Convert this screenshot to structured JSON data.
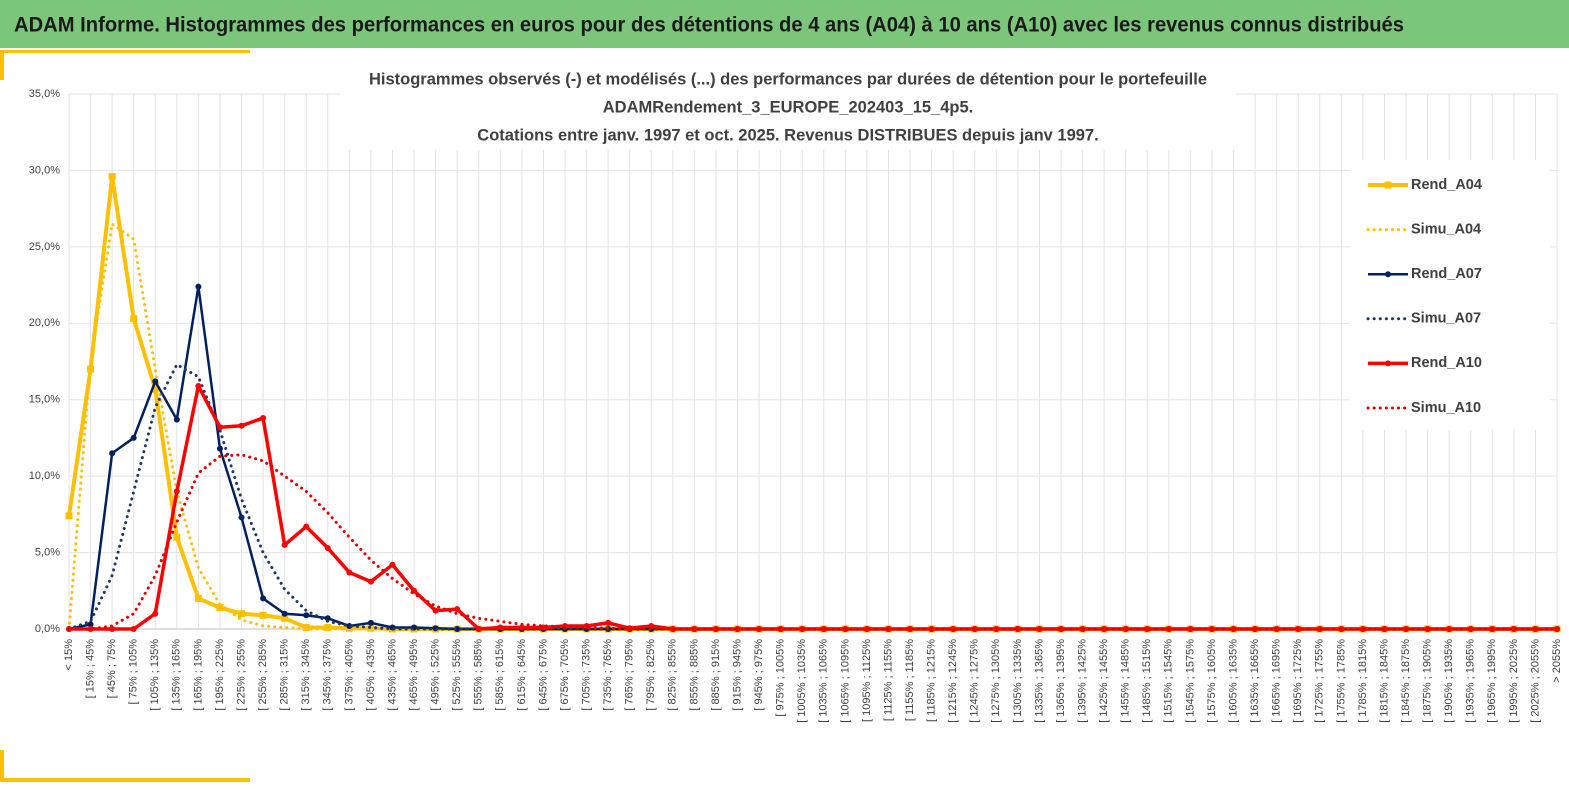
{
  "header": {
    "title": "ADAM Informe. Histogrammes des performances en euros pour des détentions de 4 ans (A04) à 10 ans (A10) avec les revenus connus distribués"
  },
  "chart_data": {
    "type": "line",
    "title": [
      "Histogrammes observés (-) et modélisés (...) des performances par durées de détention pour le portefeuille",
      "ADAMRendement_3_EUROPE_202403_15_4p5.",
      "Cotations entre janv. 1997 et oct. 2025. Revenus DISTRIBUES depuis janv 1997."
    ],
    "categories": [
      "< 15%",
      "[ 15% ; 45%",
      "[ 45% ; 75%",
      "[ 75% ; 105%",
      "[ 105% ; 135%",
      "[ 135% ; 165%",
      "[ 165% ; 195%",
      "[ 195% ; 225%",
      "[ 225% ; 255%",
      "[ 255% ; 285%",
      "[ 285% ; 315%",
      "[ 315% ; 345%",
      "[ 345% ; 375%",
      "[ 375% ; 405%",
      "[ 405% ; 435%",
      "[ 435% ; 465%",
      "[ 465% ; 495%",
      "[ 495% ; 525%",
      "[ 525% ; 555%",
      "[ 555% ; 585%",
      "[ 585% ; 615%",
      "[ 615% ; 645%",
      "[ 645% ; 675%",
      "[ 675% ; 705%",
      "[ 705% ; 735%",
      "[ 735% ; 765%",
      "[ 765% ; 795%",
      "[ 795% ; 825%",
      "[ 825% ; 855%",
      "[ 855% ; 885%",
      "[ 885% ; 915%",
      "[ 915% ; 945%",
      "[ 945% ; 975%",
      "[ 975% ; 1005%",
      "[ 1005% ; 1035%",
      "[ 1035% ; 1065%",
      "[ 1065% ; 1095%",
      "[ 1095% ; 1125%",
      "[ 1125% ; 1155%",
      "[ 1155% ; 1185%",
      "[ 1185% ; 1215%",
      "[ 1215% ; 1245%",
      "[ 1245% ; 1275%",
      "[ 1275% ; 1305%",
      "[ 1305% ; 1335%",
      "[ 1335% ; 1365%",
      "[ 1365% ; 1395%",
      "[ 1395% ; 1425%",
      "[ 1425% ; 1455%",
      "[ 1455% ; 1485%",
      "[ 1485% ; 1515%",
      "[ 1515% ; 1545%",
      "[ 1545% ; 1575%",
      "[ 1575% ; 1605%",
      "[ 1605% ; 1635%",
      "[ 1635% ; 1665%",
      "[ 1665% ; 1695%",
      "[ 1695% ; 1725%",
      "[ 1725% ; 1755%",
      "[ 1755% ; 1785%",
      "[ 1785% ; 1815%",
      "[ 1815% ; 1845%",
      "[ 1845% ; 1875%",
      "[ 1875% ; 1905%",
      "[ 1905% ; 1935%",
      "[ 1935% ; 1965%",
      "[ 1965% ; 1995%",
      "[ 1995% ; 2025%",
      "[ 2025% ; 2055%",
      "> 2055%"
    ],
    "series": [
      {
        "name": "Rend_A04",
        "color": "#ffc000",
        "style": "solid",
        "marker": "square",
        "values": [
          7.4,
          17,
          29.6,
          20.3,
          15.7,
          6,
          2,
          1.4,
          1,
          0.9,
          0.7,
          0.1,
          0.1,
          0.05,
          0.05,
          0,
          0,
          0,
          0,
          0,
          0,
          0,
          0,
          0,
          0,
          0,
          0,
          0,
          0,
          0,
          0,
          0,
          0,
          0,
          0,
          0,
          0,
          0,
          0,
          0,
          0,
          0,
          0,
          0,
          0,
          0,
          0,
          0,
          0,
          0,
          0,
          0,
          0,
          0,
          0,
          0,
          0,
          0,
          0,
          0,
          0,
          0,
          0,
          0,
          0,
          0,
          0,
          0,
          0,
          0
        ]
      },
      {
        "name": "Simu_A04",
        "color": "#ffc000",
        "style": "dotted",
        "marker": null,
        "values": [
          0,
          17.5,
          26.5,
          25.5,
          17,
          9,
          4,
          1.6,
          0.6,
          0.2,
          0.1,
          0,
          0,
          0,
          0,
          0,
          0,
          0,
          0,
          0,
          0,
          0,
          0,
          0,
          0,
          0,
          0,
          0,
          0,
          0,
          0,
          0,
          0,
          0,
          0,
          0,
          0,
          0,
          0,
          0,
          0,
          0,
          0,
          0,
          0,
          0,
          0,
          0,
          0,
          0,
          0,
          0,
          0,
          0,
          0,
          0,
          0,
          0,
          0,
          0,
          0,
          0,
          0,
          0,
          0,
          0,
          0,
          0,
          0,
          0
        ]
      },
      {
        "name": "Rend_A07",
        "color": "#002060",
        "style": "solid",
        "marker": "circle",
        "values": [
          0,
          0.3,
          11.5,
          12.5,
          16.2,
          13.7,
          22.4,
          11.8,
          7.3,
          2,
          1,
          0.9,
          0.7,
          0.2,
          0.4,
          0.1,
          0.1,
          0.05,
          0,
          0,
          0,
          0,
          0,
          0,
          0,
          0,
          0,
          0,
          0,
          0,
          0,
          0,
          0,
          0,
          0,
          0,
          0,
          0,
          0,
          0,
          0,
          0,
          0,
          0,
          0,
          0,
          0,
          0,
          0,
          0,
          0,
          0,
          0,
          0,
          0,
          0,
          0,
          0,
          0,
          0,
          0,
          0,
          0,
          0,
          0,
          0,
          0,
          0,
          0,
          0
        ]
      },
      {
        "name": "Simu_A07",
        "color": "#1f3864",
        "style": "dotted",
        "marker": null,
        "values": [
          0,
          0.5,
          3.5,
          9,
          14.5,
          17.3,
          16.5,
          13,
          8.5,
          5,
          2.6,
          1.2,
          0.5,
          0.2,
          0.1,
          0,
          0,
          0,
          0,
          0,
          0,
          0,
          0,
          0,
          0,
          0,
          0,
          0,
          0,
          0,
          0,
          0,
          0,
          0,
          0,
          0,
          0,
          0,
          0,
          0,
          0,
          0,
          0,
          0,
          0,
          0,
          0,
          0,
          0,
          0,
          0,
          0,
          0,
          0,
          0,
          0,
          0,
          0,
          0,
          0,
          0,
          0,
          0,
          0,
          0,
          0,
          0,
          0,
          0,
          0
        ]
      },
      {
        "name": "Rend_A10",
        "color": "#ff0000",
        "style": "solid",
        "marker": "circle",
        "values": [
          0,
          0,
          0,
          0,
          1,
          9,
          15.9,
          13.2,
          13.3,
          13.8,
          5.5,
          6.7,
          5.3,
          3.7,
          3.1,
          4.2,
          2.5,
          1.2,
          1.3,
          0,
          0.1,
          0.1,
          0.1,
          0.2,
          0.2,
          0.4,
          0.05,
          0.2,
          0,
          0,
          0,
          0,
          0,
          0,
          0,
          0,
          0,
          0,
          0,
          0,
          0,
          0,
          0,
          0,
          0,
          0,
          0,
          0,
          0,
          0,
          0,
          0,
          0,
          0,
          0,
          0,
          0,
          0,
          0,
          0,
          0,
          0,
          0,
          0,
          0,
          0,
          0,
          0,
          0,
          0
        ]
      },
      {
        "name": "Simu_A10",
        "color": "#e00000",
        "style": "dotted",
        "marker": null,
        "values": [
          0,
          0,
          0.2,
          1,
          3.5,
          7,
          10.2,
          11.3,
          11.4,
          11,
          10,
          9,
          7.6,
          6,
          4.5,
          3.3,
          2.3,
          1.5,
          1,
          0.7,
          0.5,
          0.3,
          0.2,
          0.15,
          0.1,
          0.05,
          0,
          0,
          0,
          0,
          0,
          0,
          0,
          0,
          0,
          0,
          0,
          0,
          0,
          0,
          0,
          0,
          0,
          0,
          0,
          0,
          0,
          0,
          0,
          0,
          0,
          0,
          0,
          0,
          0,
          0,
          0,
          0,
          0,
          0,
          0,
          0,
          0,
          0,
          0,
          0,
          0,
          0,
          0,
          0
        ]
      }
    ],
    "ylim": [
      0,
      35
    ],
    "yticks": [
      {
        "value": 0,
        "label": "0,0%"
      },
      {
        "value": 5,
        "label": "5,0%"
      },
      {
        "value": 10,
        "label": "10,0%"
      },
      {
        "value": 15,
        "label": "15,0%"
      },
      {
        "value": 20,
        "label": "20,0%"
      },
      {
        "value": 25,
        "label": "25,0%"
      },
      {
        "value": 30,
        "label": "30,0%"
      },
      {
        "value": 35,
        "label": "35,0%"
      }
    ],
    "grid": true,
    "legend": "right"
  }
}
